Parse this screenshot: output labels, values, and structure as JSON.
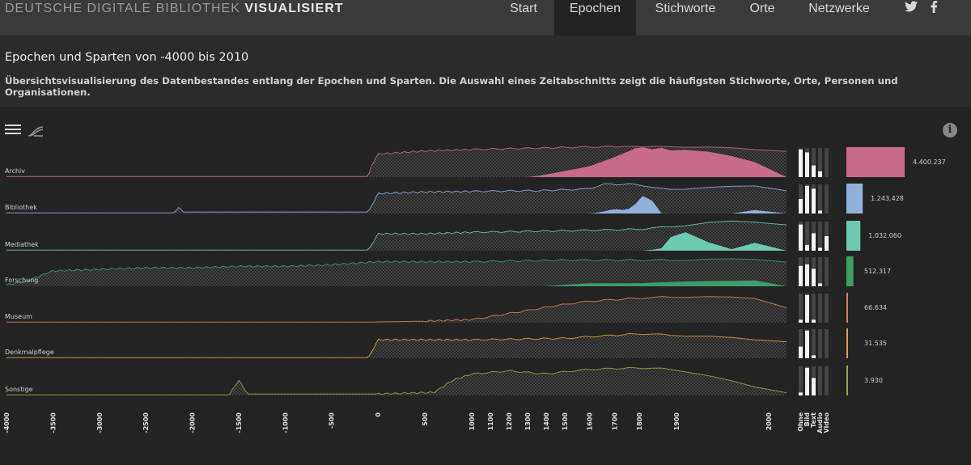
{
  "brand": {
    "light": "DEUTSCHE DIGITALE BIBLIOTHEK ",
    "bold": "VISUALISIERT"
  },
  "nav": [
    {
      "label": "Start",
      "active": false
    },
    {
      "label": "Epochen",
      "active": true
    },
    {
      "label": "Stichworte",
      "active": false
    },
    {
      "label": "Orte",
      "active": false
    },
    {
      "label": "Netzwerke",
      "active": false
    }
  ],
  "social": {
    "twitter": "twitter-icon",
    "facebook": "facebook-icon"
  },
  "header": {
    "title": "Epochen und Sparten von -4000 bis 2010",
    "subtitle": "Übersichtsvisualisierung des Datenbestandes entlang der Epochen und Sparten. Die Auswahl eines Zeitabschnitts zeigt die häufigsten Stichworte, Orte, Personen und Organisationen."
  },
  "toolbar": {
    "menu_icon": "hamburger-icon",
    "curve_icon": "curve-icon",
    "info_icon": "info-icon",
    "info_glyph": "i"
  },
  "chart_data": {
    "type": "area",
    "x_ticks": [
      "-4000",
      "-3500",
      "-3000",
      "-2500",
      "-2000",
      "-1500",
      "-1000",
      "-500",
      "0",
      "500",
      "1000",
      "1100",
      "1200",
      "1300",
      "1400",
      "1500",
      "1600",
      "1700",
      "1800",
      "1900",
      "2000"
    ],
    "media_labels": [
      "Ohne",
      "Bild",
      "Text",
      "Audio",
      "Video"
    ],
    "series": [
      {
        "name": "Archiv",
        "color": "#c86b8a",
        "total": "4.400.237",
        "share": 1.0,
        "media": [
          0.95,
          0.85,
          0.4,
          0.2,
          0
        ],
        "envelope": [
          [
            -4000,
            0.02
          ],
          [
            -100,
            0.02
          ],
          [
            -80,
            0.3
          ],
          [
            0,
            0.75
          ],
          [
            500,
            0.85
          ],
          [
            1000,
            0.9
          ],
          [
            1400,
            0.95
          ],
          [
            1700,
            1.0
          ],
          [
            1800,
            1.0
          ],
          [
            1900,
            1.0
          ],
          [
            2000,
            0.9
          ],
          [
            2010,
            0.85
          ]
        ],
        "filled": [
          [
            1300,
            0
          ],
          [
            1400,
            0.08
          ],
          [
            1500,
            0.2
          ],
          [
            1600,
            0.35
          ],
          [
            1700,
            0.65
          ],
          [
            1760,
            0.85
          ],
          [
            1800,
            1.0
          ],
          [
            1830,
            0.9
          ],
          [
            1860,
            0.95
          ],
          [
            1890,
            0.85
          ],
          [
            1920,
            0.9
          ],
          [
            1950,
            0.75
          ],
          [
            1980,
            0.55
          ],
          [
            2000,
            0.3
          ],
          [
            2010,
            0
          ]
        ]
      },
      {
        "name": "Bibliothek",
        "color": "#8fb1dc",
        "total": "1.243.428",
        "share": 0.28,
        "media": [
          0.5,
          0.95,
          0.85,
          0.1,
          0
        ],
        "envelope": [
          [
            -4000,
            0.02
          ],
          [
            -2200,
            0.02
          ],
          [
            -2150,
            0.2
          ],
          [
            -2100,
            0.05
          ],
          [
            -100,
            0.05
          ],
          [
            0,
            0.65
          ],
          [
            500,
            0.7
          ],
          [
            1000,
            0.72
          ],
          [
            1400,
            0.75
          ],
          [
            1600,
            0.8
          ],
          [
            1650,
            0.95
          ],
          [
            1800,
            0.95
          ],
          [
            1850,
            0.8
          ],
          [
            1900,
            0.8
          ],
          [
            1950,
            0.85
          ],
          [
            2000,
            0.95
          ],
          [
            2010,
            0.75
          ]
        ],
        "filled": [
          [
            1600,
            0
          ],
          [
            1650,
            0.05
          ],
          [
            1700,
            0.15
          ],
          [
            1750,
            0.1
          ],
          [
            1800,
            0.4
          ],
          [
            1820,
            0.75
          ],
          [
            1840,
            0.3
          ],
          [
            1860,
            0
          ],
          [
            1980,
            0
          ],
          [
            2000,
            0.45
          ],
          [
            2010,
            0
          ]
        ]
      },
      {
        "name": "Mediathek",
        "color": "#6ccbb0",
        "total": "1.032.060",
        "share": 0.24,
        "media": [
          0.9,
          0.2,
          0.6,
          0.1,
          0.5
        ],
        "envelope": [
          [
            -4000,
            0.02
          ],
          [
            -100,
            0.02
          ],
          [
            0,
            0.55
          ],
          [
            500,
            0.55
          ],
          [
            1000,
            0.6
          ],
          [
            1500,
            0.65
          ],
          [
            1800,
            0.7
          ],
          [
            1900,
            0.8
          ],
          [
            1950,
            0.95
          ],
          [
            2000,
            0.95
          ],
          [
            2010,
            0.85
          ]
        ],
        "filled": [
          [
            1820,
            0
          ],
          [
            1870,
            0.1
          ],
          [
            1900,
            0.8
          ],
          [
            1920,
            0.4
          ],
          [
            1960,
            0.05
          ],
          [
            1990,
            0.3
          ],
          [
            2000,
            0.6
          ],
          [
            2010,
            0
          ]
        ]
      },
      {
        "name": "Forschung",
        "color": "#3d9e6a",
        "total": "512.317",
        "share": 0.12,
        "media": [
          0.7,
          0.75,
          0.6,
          0.1,
          0
        ],
        "envelope": [
          [
            -4000,
            0.05
          ],
          [
            -3800,
            0.15
          ],
          [
            -3500,
            0.5
          ],
          [
            -3000,
            0.55
          ],
          [
            -2500,
            0.6
          ],
          [
            -2000,
            0.6
          ],
          [
            -1500,
            0.65
          ],
          [
            -1000,
            0.65
          ],
          [
            -500,
            0.7
          ],
          [
            0,
            0.8
          ],
          [
            500,
            0.8
          ],
          [
            1000,
            0.8
          ],
          [
            1500,
            0.85
          ],
          [
            1900,
            0.85
          ],
          [
            2000,
            0.9
          ],
          [
            2010,
            0.8
          ]
        ],
        "filled": [
          [
            1400,
            0
          ],
          [
            1500,
            0.05
          ],
          [
            1600,
            0.1
          ],
          [
            1800,
            0.1
          ],
          [
            1900,
            0.15
          ],
          [
            2000,
            0.2
          ],
          [
            2010,
            0
          ]
        ]
      },
      {
        "name": "Museum",
        "color": "#d8845a",
        "total": "66.634",
        "share": 0.015,
        "media": [
          0.1,
          0.95,
          0.1,
          0,
          0
        ],
        "envelope": [
          [
            -4000,
            0.02
          ],
          [
            -100,
            0.02
          ],
          [
            500,
            0.05
          ],
          [
            1000,
            0.1
          ],
          [
            1200,
            0.3
          ],
          [
            1400,
            0.5
          ],
          [
            1600,
            0.7
          ],
          [
            1800,
            0.8
          ],
          [
            1900,
            0.85
          ],
          [
            2000,
            0.8
          ],
          [
            2010,
            0.5
          ]
        ],
        "filled": []
      },
      {
        "name": "Denkmalpflege",
        "color": "#e0a040",
        "total": "31.535",
        "share": 0.008,
        "media": [
          0.4,
          0.95,
          0.1,
          0,
          0
        ],
        "envelope": [
          [
            -4000,
            0.02
          ],
          [
            -100,
            0.02
          ],
          [
            0,
            0.6
          ],
          [
            500,
            0.6
          ],
          [
            1000,
            0.6
          ],
          [
            1500,
            0.65
          ],
          [
            1800,
            0.8
          ],
          [
            1900,
            0.75
          ],
          [
            2000,
            0.6
          ],
          [
            2010,
            0.55
          ]
        ],
        "filled": []
      },
      {
        "name": "Sonstige",
        "color": "#9aaa40",
        "total": "3.930",
        "share": 0.002,
        "media": [
          0.1,
          0.95,
          0.6,
          0,
          0
        ],
        "envelope": [
          [
            -4000,
            0.02
          ],
          [
            -1600,
            0.02
          ],
          [
            -1500,
            0.5
          ],
          [
            -1400,
            0.05
          ],
          [
            0,
            0.05
          ],
          [
            600,
            0.1
          ],
          [
            800,
            0.5
          ],
          [
            1000,
            0.7
          ],
          [
            1200,
            0.8
          ],
          [
            1400,
            0.7
          ],
          [
            1600,
            0.85
          ],
          [
            1800,
            0.9
          ],
          [
            1900,
            0.85
          ],
          [
            2000,
            0.2
          ],
          [
            2010,
            0.1
          ]
        ],
        "filled": []
      }
    ]
  }
}
